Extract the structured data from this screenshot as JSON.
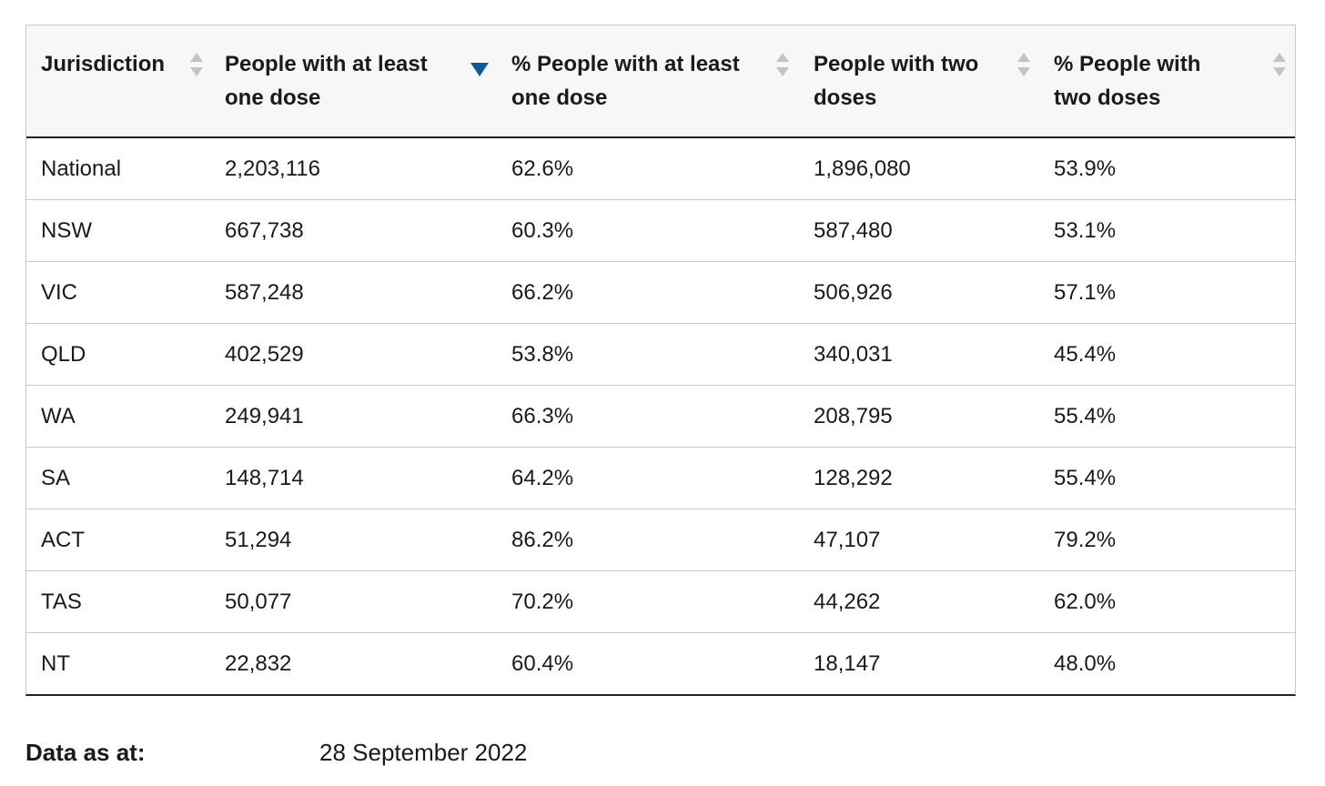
{
  "table": {
    "headers": [
      "Jurisdiction",
      "People with at least one dose",
      "% People with at least one dose",
      "People with two doses",
      "% People with two doses"
    ],
    "rows": [
      [
        "National",
        "2,203,116",
        "62.6%",
        "1,896,080",
        "53.9%"
      ],
      [
        "NSW",
        "667,738",
        "60.3%",
        "587,480",
        "53.1%"
      ],
      [
        "VIC",
        "587,248",
        "66.2%",
        "506,926",
        "57.1%"
      ],
      [
        "QLD",
        "402,529",
        "53.8%",
        "340,031",
        "45.4%"
      ],
      [
        "WA",
        "249,941",
        "66.3%",
        "208,795",
        "55.4%"
      ],
      [
        "SA",
        "148,714",
        "64.2%",
        "128,292",
        "55.4%"
      ],
      [
        "ACT",
        "51,294",
        "86.2%",
        "47,107",
        "79.2%"
      ],
      [
        "TAS",
        "50,077",
        "70.2%",
        "44,262",
        "62.0%"
      ],
      [
        "NT",
        "22,832",
        "60.4%",
        "18,147",
        "48.0%"
      ]
    ]
  },
  "footer": {
    "label": "Data as at:",
    "value": "28 September 2022"
  }
}
